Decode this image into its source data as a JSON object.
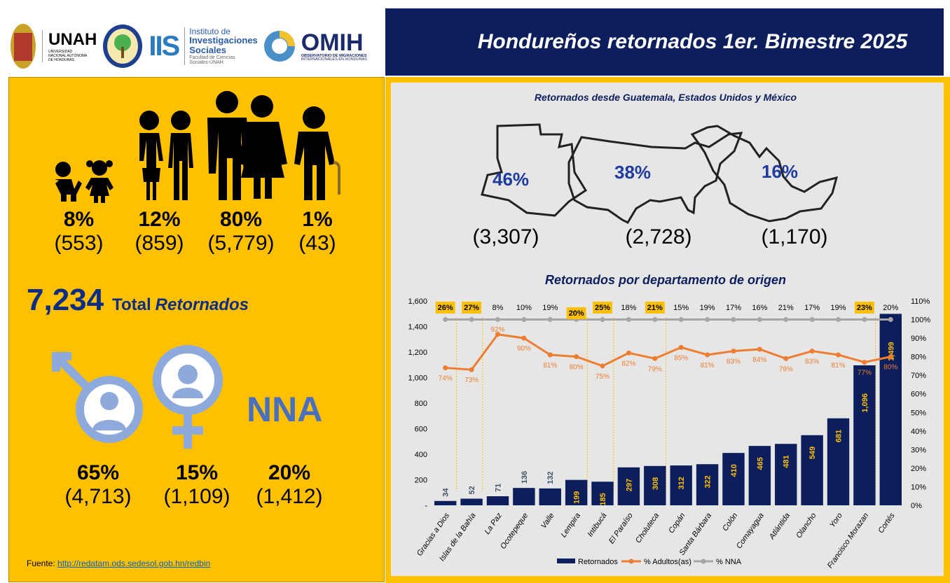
{
  "logos": {
    "unah": "UNAH",
    "unah_sub": "UNIVERSIDAD NACIONAL AUTÓNOMA DE HONDURAS",
    "iis": "IIS",
    "iis_name1": "Instituto de",
    "iis_name2": "Investigaciones",
    "iis_name3": "Sociales",
    "iis_sub": "Facultad de Ciencias Sociales-UNAH",
    "omih": "OMIH",
    "omih_sub1": "OBSERVATORIO DE MIGRACIONES",
    "omih_sub2": "INTERNACIONALES EN HONDURAS"
  },
  "title": "Hondureños retornados 1er. Bimestre 2025",
  "age_groups": [
    {
      "icon": "children-icon",
      "pct": "8%",
      "count": "(553)"
    },
    {
      "icon": "youth-icon",
      "pct": "12%",
      "count": "(859)"
    },
    {
      "icon": "adults-icon",
      "pct": "80%",
      "count": "(5,779)"
    },
    {
      "icon": "elderly-icon",
      "pct": "1%",
      "count": "(43)"
    }
  ],
  "total": {
    "value": "7,234",
    "label1": "Total",
    "label2": "Retornados"
  },
  "gender": [
    {
      "icon": "male-icon",
      "pct": "65%",
      "count": "(4,713)"
    },
    {
      "icon": "female-icon",
      "pct": "15%",
      "count": "(1,109)"
    },
    {
      "icon": "nna-label",
      "label": "NNA",
      "pct": "20%",
      "count": "(1,412)"
    }
  ],
  "source": {
    "label": "Fuente:",
    "link": "http://redatam.ods.sedesol.gob.hn/redbin"
  },
  "countries": {
    "title": "Retornados desde Guatemala, Estados Unidos y México",
    "items": [
      {
        "name": "guatemala",
        "pct": "46%",
        "count": "(3,307)"
      },
      {
        "name": "usa",
        "pct": "38%",
        "count": "(2,728)"
      },
      {
        "name": "mexico",
        "pct": "16%",
        "count": "(1,170)"
      }
    ]
  },
  "colors": {
    "navy": "#0c1f5c",
    "yellow": "#ffc000",
    "orange": "#ed7d31",
    "gray": "#a6a6a6"
  },
  "chart_data": {
    "type": "bar",
    "title": "Retornados por departamento de origen",
    "categories": [
      "Gracias a Dios",
      "Islas de la Bahía",
      "La Paz",
      "Ocotepeque",
      "Valle",
      "Lempira",
      "Intibucá",
      "El Paraíso",
      "Choluteca",
      "Copán",
      "Santa Bárbara",
      "Colón",
      "Comayagua",
      "Atlántida",
      "Olancho",
      "Yoro",
      "Francisco Morazan",
      "Cortés"
    ],
    "series": [
      {
        "name": "Retornados",
        "axis": "left",
        "values": [
          34,
          52,
          71,
          136,
          132,
          199,
          185,
          297,
          308,
          312,
          322,
          410,
          465,
          481,
          549,
          681,
          1096,
          1499
        ],
        "labels": [
          "34",
          "52",
          "71",
          "136",
          "132",
          "199",
          "185",
          "297",
          "308",
          "312",
          "322",
          "410",
          "465",
          "481",
          "549",
          "681",
          "1,096",
          "1,499"
        ]
      },
      {
        "name": "% Adultos(as)",
        "axis": "right",
        "values": [
          74,
          73,
          92,
          90,
          81,
          80,
          75,
          82,
          79,
          85,
          81,
          83,
          84,
          79,
          83,
          81,
          77,
          80
        ]
      },
      {
        "name": "% NNA",
        "axis": "right",
        "values": [
          100,
          100,
          100,
          100,
          100,
          100,
          100,
          100,
          100,
          100,
          100,
          100,
          100,
          100,
          100,
          100,
          100,
          100
        ],
        "top_labels": [
          26,
          27,
          8,
          10,
          19,
          20,
          25,
          18,
          21,
          15,
          19,
          17,
          16,
          21,
          17,
          19,
          23,
          20
        ],
        "highlighted": [
          0,
          1,
          5,
          6,
          8,
          16
        ]
      }
    ],
    "ylim": [
      0,
      1600
    ],
    "yticks": [
      "-",
      "200",
      "400",
      "600",
      "800",
      "1,000",
      "1,200",
      "1,400",
      "1,600"
    ],
    "y2lim": [
      0,
      110
    ],
    "y2ticks": [
      "0%",
      "10%",
      "20%",
      "30%",
      "40%",
      "50%",
      "60%",
      "70%",
      "80%",
      "90%",
      "100%",
      "110%"
    ],
    "legend": "bottom"
  }
}
